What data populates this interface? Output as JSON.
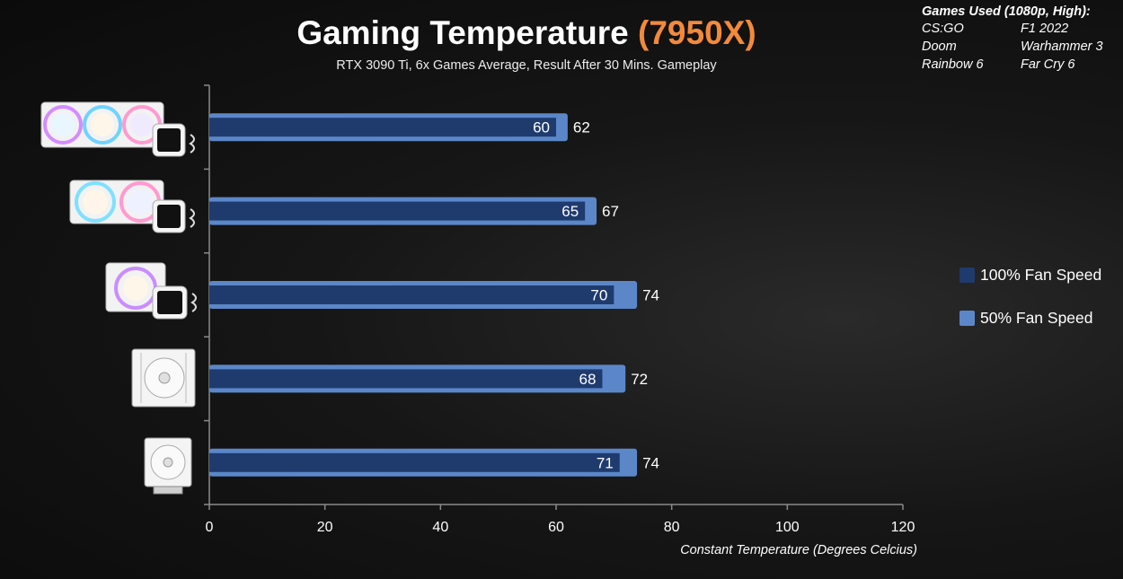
{
  "title": {
    "main": "Gaming Temperature",
    "highlight": "(7950X)"
  },
  "subtitle": "RTX 3090 Ti, 6x Games Average, Result After 30 Mins. Gameplay",
  "games": {
    "header": "Games Used (1080p, High):",
    "rows": [
      [
        "CS:GO",
        "F1 2022"
      ],
      [
        "Doom",
        "Warhammer 3"
      ],
      [
        "Rainbow 6",
        "Far Cry 6"
      ]
    ]
  },
  "legend": [
    {
      "label": "100% Fan Speed",
      "color": "#1f3b6e"
    },
    {
      "label": "50% Fan Speed",
      "color": "#5b87c9"
    }
  ],
  "chart_data": {
    "type": "bar",
    "orientation": "horizontal",
    "categories": [
      "cooler-1",
      "cooler-2",
      "cooler-3",
      "cooler-4",
      "cooler-5"
    ],
    "series": [
      {
        "name": "100% Fan Speed",
        "values": [
          60,
          65,
          70,
          68,
          71
        ]
      },
      {
        "name": "50% Fan Speed",
        "values": [
          62,
          67,
          74,
          72,
          74
        ]
      }
    ],
    "xlim": [
      0,
      120
    ],
    "xticks": [
      0,
      20,
      40,
      60,
      80,
      100,
      120
    ],
    "xlabel": "Constant Temperature (Degrees Celcius)",
    "legend_position": "right",
    "grid": false
  },
  "icons": [
    "aio-360-liquid-cooler-icon",
    "aio-280-liquid-cooler-icon",
    "aio-240-liquid-cooler-icon",
    "dual-tower-air-cooler-icon",
    "single-tower-air-cooler-icon"
  ]
}
